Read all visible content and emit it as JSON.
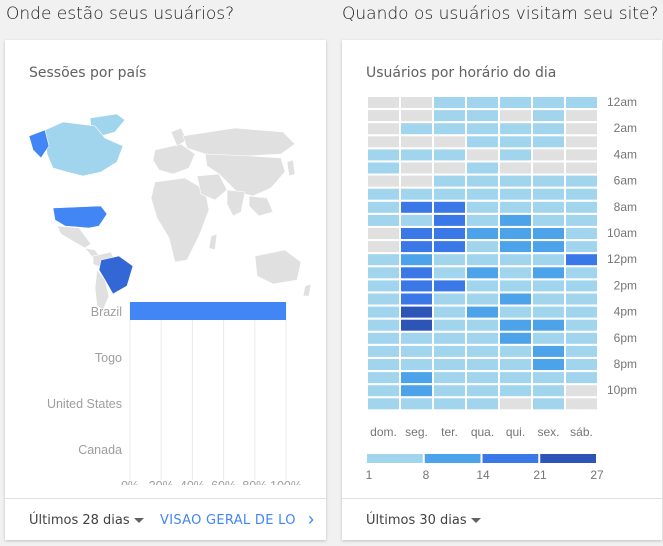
{
  "left": {
    "section_title": "Onde estão seus usuários?",
    "card_title": "Sessões por país",
    "footer_range": "Últimos 28 dias",
    "footer_link": "VISÃO GERAL DE LO...",
    "map_colors": {
      "land": "#e0e0e0",
      "brazil": "#3367d6",
      "usa": "#4285f4",
      "canada": "#a1d5ee",
      "alaska": "#4285f4",
      "greenland": "#a1d5ee"
    }
  },
  "right": {
    "section_title": "Quando os usuários visitam seu site?",
    "card_title": "Usuários por horário do dia",
    "footer_range": "Últimos 30 dias"
  },
  "chart_data": [
    {
      "type": "bar",
      "orientation": "horizontal",
      "categories": [
        "Brazil",
        "Togo",
        "United States",
        "Canada"
      ],
      "values": [
        100,
        0,
        0,
        0
      ],
      "xlim": [
        0,
        100
      ],
      "x_ticks": [
        "0%",
        "20%",
        "40%",
        "60%",
        "80%",
        "100%"
      ],
      "bar_color": "#4285f4",
      "grid": true
    },
    {
      "type": "heatmap",
      "days": [
        "dom.",
        "seg.",
        "ter.",
        "qua.",
        "qui.",
        "sex.",
        "sáb."
      ],
      "hour_labels": [
        "12am",
        "2am",
        "4am",
        "6am",
        "8am",
        "10am",
        "12pm",
        "2pm",
        "4pm",
        "6pm",
        "8pm",
        "10pm"
      ],
      "legend_ticks": [
        "1",
        "8",
        "14",
        "21",
        "27"
      ],
      "legend_colors": [
        "#a1d5ee",
        "#4da3ea",
        "#3b78e7",
        "#2d55b8"
      ],
      "empty_color": "#e0e0e0",
      "levels": [
        [
          0,
          0,
          1,
          1,
          1,
          1,
          1
        ],
        [
          0,
          0,
          1,
          1,
          0,
          1,
          0
        ],
        [
          0,
          1,
          1,
          1,
          1,
          1,
          0
        ],
        [
          0,
          0,
          0,
          1,
          1,
          1,
          0
        ],
        [
          1,
          1,
          1,
          0,
          1,
          0,
          0
        ],
        [
          1,
          0,
          0,
          1,
          0,
          0,
          0
        ],
        [
          0,
          0,
          1,
          1,
          1,
          1,
          1
        ],
        [
          1,
          1,
          1,
          1,
          1,
          1,
          1
        ],
        [
          1,
          3,
          3,
          1,
          1,
          1,
          1
        ],
        [
          1,
          1,
          3,
          1,
          2,
          1,
          1
        ],
        [
          0,
          3,
          3,
          2,
          2,
          2,
          1
        ],
        [
          0,
          3,
          3,
          1,
          2,
          2,
          1
        ],
        [
          1,
          2,
          1,
          1,
          1,
          1,
          3
        ],
        [
          1,
          3,
          1,
          2,
          1,
          2,
          1
        ],
        [
          1,
          3,
          3,
          1,
          1,
          1,
          1
        ],
        [
          1,
          3,
          1,
          1,
          2,
          1,
          1
        ],
        [
          1,
          4,
          1,
          2,
          1,
          1,
          1
        ],
        [
          1,
          4,
          1,
          1,
          2,
          2,
          1
        ],
        [
          1,
          1,
          1,
          1,
          2,
          1,
          1
        ],
        [
          1,
          1,
          1,
          1,
          1,
          2,
          1
        ],
        [
          1,
          1,
          1,
          1,
          1,
          2,
          1
        ],
        [
          1,
          2,
          1,
          1,
          1,
          1,
          1
        ],
        [
          1,
          2,
          1,
          1,
          1,
          1,
          0
        ],
        [
          1,
          1,
          1,
          1,
          0,
          1,
          0
        ]
      ]
    }
  ]
}
